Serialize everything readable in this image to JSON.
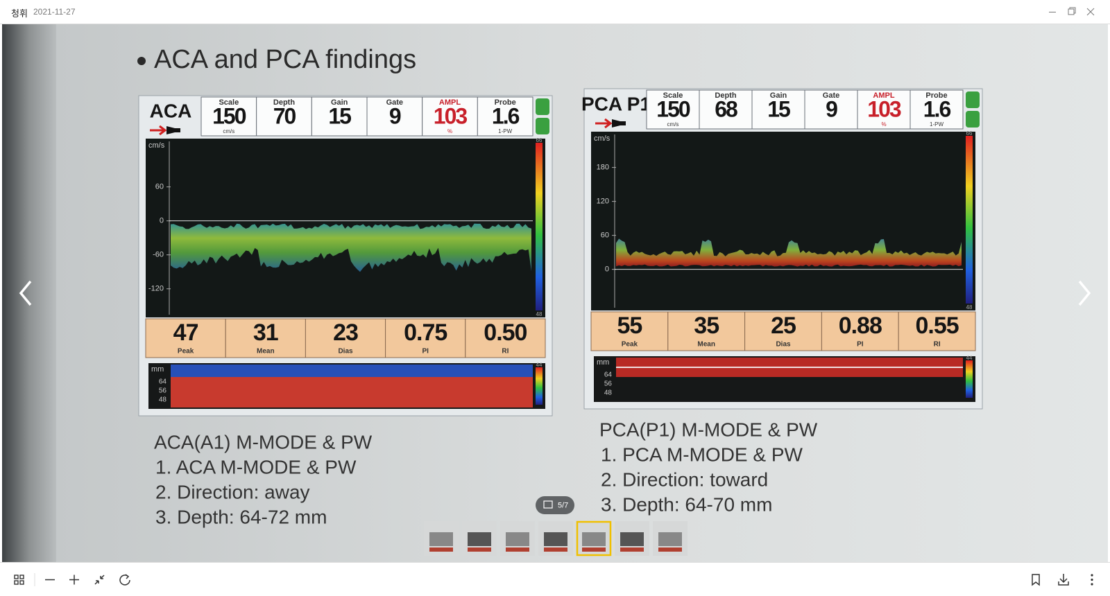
{
  "window": {
    "title": "청휘",
    "date": "2021-11-27"
  },
  "slide": {
    "heading": "ACA and PCA findings",
    "panels": [
      {
        "name": "ACA",
        "params": [
          {
            "label": "Scale",
            "value": "150",
            "unit": "cm/s"
          },
          {
            "label": "Depth",
            "value": "70"
          },
          {
            "label": "Gain",
            "value": "15"
          },
          {
            "label": "Gate",
            "value": "9"
          },
          {
            "label": "AMPL",
            "value": "103",
            "unit": "%",
            "color": "#c8202a"
          },
          {
            "label": "Probe",
            "value": "1.6",
            "unit": "1-PW"
          }
        ],
        "axis_unit": "cm/s",
        "axis_ticks": [
          "60",
          "0",
          "-60",
          "-120"
        ],
        "color_scale": [
          "66",
          "48"
        ],
        "measurements": [
          {
            "value": "47",
            "label": "Peak"
          },
          {
            "value": "31",
            "label": "Mean"
          },
          {
            "value": "23",
            "label": "Dias"
          },
          {
            "value": "0.75",
            "label": "PI"
          },
          {
            "value": "0.50",
            "label": "RI"
          }
        ],
        "mmode_unit": "mm",
        "mmode_ticks": [
          "64",
          "56",
          "48"
        ],
        "mmode_scale": "44",
        "caption": [
          "ACA(A1) M-MODE & PW",
          "1. ACA M-MODE & PW",
          "2. Direction: away",
          "3. Depth: 64-72 mm"
        ]
      },
      {
        "name": "PCA P1",
        "params": [
          {
            "label": "Scale",
            "value": "150",
            "unit": "cm/s"
          },
          {
            "label": "Depth",
            "value": "68"
          },
          {
            "label": "Gain",
            "value": "15"
          },
          {
            "label": "Gate",
            "value": "9"
          },
          {
            "label": "AMPL",
            "value": "103",
            "unit": "%",
            "color": "#c8202a"
          },
          {
            "label": "Probe",
            "value": "1.6",
            "unit": "1-PW"
          }
        ],
        "axis_unit": "cm/s",
        "axis_ticks": [
          "180",
          "120",
          "60",
          "0"
        ],
        "color_scale": [
          "66",
          "48"
        ],
        "measurements": [
          {
            "value": "55",
            "label": "Peak"
          },
          {
            "value": "35",
            "label": "Mean"
          },
          {
            "value": "25",
            "label": "Dias"
          },
          {
            "value": "0.88",
            "label": "PI"
          },
          {
            "value": "0.55",
            "label": "RI"
          }
        ],
        "mmode_unit": "mm",
        "mmode_ticks": [
          "64",
          "56",
          "48"
        ],
        "mmode_scale": "44",
        "caption": [
          "PCA(P1) M-MODE & PW",
          "1. PCA M-MODE & PW",
          "2. Direction: toward",
          "3. Depth: 64-70 mm"
        ]
      }
    ]
  },
  "viewer": {
    "counter": "5/7"
  }
}
